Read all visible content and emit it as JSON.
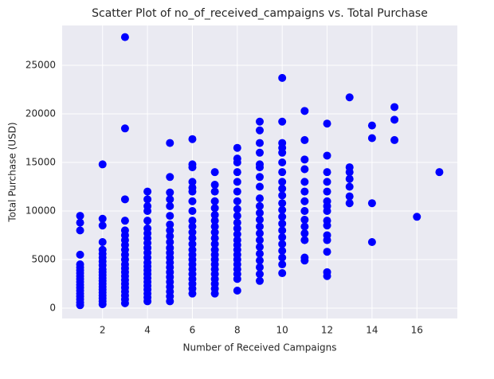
{
  "chart_data": {
    "type": "scatter",
    "title": "Scatter Plot of no_of_received_campaigns vs. Total Purchase",
    "x_label": "Number of Received Campaigns",
    "y_label": "Total Purchase (USD)",
    "color": "#0000ff",
    "grid": true,
    "xlim": [
      0.2,
      17.8
    ],
    "ylim": [
      -1070,
      29100
    ],
    "xticks": [
      2,
      4,
      6,
      8,
      10,
      12,
      14,
      16
    ],
    "yticks": [
      0,
      5000,
      10000,
      15000,
      20000,
      25000
    ],
    "x": [
      1,
      1,
      1,
      1,
      1,
      1,
      1,
      1,
      1,
      1,
      1,
      1,
      1,
      1,
      1,
      1,
      1,
      1,
      1,
      2,
      2,
      2,
      2,
      2,
      2,
      2,
      2,
      2,
      2,
      2,
      2,
      2,
      2,
      2,
      2,
      2,
      2,
      2,
      2,
      2,
      2,
      3,
      3,
      3,
      3,
      3,
      3,
      3,
      3,
      3,
      3,
      3,
      3,
      3,
      3,
      3,
      3,
      3,
      3,
      3,
      3,
      3,
      3,
      4,
      4,
      4,
      4,
      4,
      4,
      4,
      4,
      4,
      4,
      4,
      4,
      4,
      4,
      4,
      4,
      4,
      4,
      4,
      4,
      4,
      4,
      4,
      5,
      5,
      5,
      5,
      5,
      5,
      5,
      5,
      5,
      5,
      5,
      5,
      5,
      5,
      5,
      5,
      5,
      5,
      5,
      5,
      5,
      5,
      6,
      6,
      6,
      6,
      6,
      6,
      6,
      6,
      6,
      6,
      6,
      6,
      6,
      6,
      6,
      6,
      6,
      6,
      6,
      6,
      6,
      6,
      6,
      7,
      7,
      7,
      7,
      7,
      7,
      7,
      7,
      7,
      7,
      7,
      7,
      7,
      7,
      7,
      7,
      7,
      7,
      7,
      7,
      7,
      8,
      8,
      8,
      8,
      8,
      8,
      8,
      8,
      8,
      8,
      8,
      8,
      8,
      8,
      8,
      8,
      8,
      8,
      8,
      8,
      8,
      8,
      9,
      9,
      9,
      9,
      9,
      9,
      9,
      9,
      9,
      9,
      9,
      9,
      9,
      9,
      9,
      9,
      9,
      9,
      9,
      9,
      9,
      10,
      10,
      10,
      10,
      10,
      10,
      10,
      10,
      10,
      10,
      10,
      10,
      10,
      10,
      10,
      10,
      10,
      10,
      10,
      10,
      10,
      11,
      11,
      11,
      11,
      11,
      11,
      11,
      11,
      11,
      11,
      11,
      11,
      11,
      11,
      12,
      12,
      12,
      12,
      12,
      12,
      12,
      12,
      12,
      12,
      12,
      12,
      12,
      12,
      12,
      13,
      13,
      13,
      13,
      13,
      13,
      13,
      14,
      14,
      14,
      14,
      15,
      15,
      15,
      16,
      17
    ],
    "y": [
      300,
      600,
      900,
      1200,
      1500,
      1800,
      2100,
      2400,
      2700,
      3000,
      3300,
      3600,
      3900,
      4200,
      4500,
      5500,
      8000,
      8800,
      9500,
      400,
      700,
      1000,
      1300,
      1600,
      1900,
      2200,
      2500,
      2800,
      3100,
      3400,
      3700,
      4000,
      4400,
      4800,
      5200,
      5600,
      6000,
      6800,
      8500,
      9200,
      14800,
      500,
      900,
      1300,
      1700,
      2100,
      2500,
      2900,
      3300,
      3700,
      4100,
      4500,
      5000,
      5500,
      6000,
      6500,
      7000,
      7500,
      8000,
      9000,
      11200,
      18500,
      27900,
      700,
      1100,
      1500,
      1900,
      2300,
      2700,
      3100,
      3500,
      3900,
      4300,
      4700,
      5200,
      5700,
      6200,
      6700,
      7200,
      7700,
      8200,
      9000,
      10000,
      10500,
      11200,
      12000,
      700,
      1200,
      1700,
      2200,
      2700,
      3200,
      3700,
      4200,
      4700,
      5200,
      5700,
      6200,
      6800,
      7400,
      8000,
      8600,
      9500,
      10500,
      11200,
      11900,
      13500,
      17000,
      1500,
      2000,
      2500,
      3000,
      3500,
      4000,
      4500,
      5000,
      5500,
      6000,
      6600,
      7200,
      7800,
      8400,
      9000,
      10000,
      11000,
      12000,
      12400,
      13000,
      14500,
      14800,
      17400,
      1500,
      2000,
      2500,
      3000,
      3500,
      4000,
      4500,
      5000,
      5500,
      6000,
      6600,
      7200,
      7800,
      8400,
      9000,
      9600,
      10300,
      11000,
      12000,
      12700,
      14000,
      1800,
      3000,
      3500,
      4000,
      4500,
      5000,
      5500,
      6000,
      6500,
      7000,
      7600,
      8200,
      8800,
      9500,
      10200,
      11000,
      12000,
      13000,
      14000,
      15000,
      15400,
      16500,
      2800,
      3500,
      4200,
      4900,
      5600,
      6300,
      7000,
      7700,
      8400,
      9100,
      9800,
      10500,
      11300,
      12500,
      13500,
      14500,
      14800,
      16000,
      17000,
      18300,
      19200,
      3600,
      4500,
      5200,
      5900,
      6600,
      7300,
      8000,
      8700,
      9400,
      10100,
      10800,
      11600,
      12300,
      13000,
      14000,
      15000,
      16000,
      16500,
      17000,
      19200,
      23700,
      4900,
      5200,
      7000,
      7700,
      8400,
      9100,
      10000,
      11000,
      12000,
      13000,
      14300,
      15300,
      17300,
      20300,
      3300,
      3700,
      5800,
      7000,
      7500,
      8500,
      9000,
      10000,
      10500,
      11000,
      12000,
      13000,
      14000,
      15700,
      19000,
      10800,
      11500,
      12500,
      13300,
      14000,
      14500,
      21700,
      6800,
      10800,
      17500,
      18800,
      17300,
      19400,
      20700,
      9400,
      14000
    ]
  }
}
